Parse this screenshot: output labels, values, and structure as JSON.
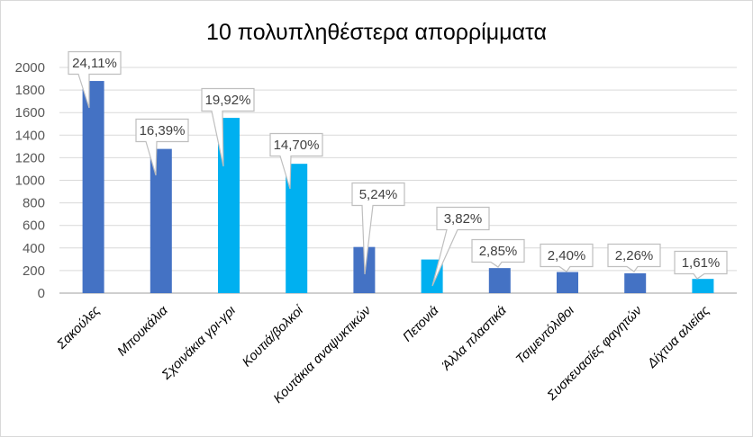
{
  "chart_data": {
    "type": "bar",
    "title": "10 πολυπληθέστερα απορρίμματα",
    "xlabel": "",
    "ylabel": "",
    "ylim": [
      0,
      2000
    ],
    "yticks": [
      0,
      200,
      400,
      600,
      800,
      1000,
      1200,
      1400,
      1600,
      1800,
      2000
    ],
    "grid": true,
    "categories": [
      "Σακούλες",
      "Μπουκάλια",
      "Σχοινάκια γρι-γρι",
      "Κουτιά/βολκοί",
      "Κουτάκια αναψυκτικών",
      "Πετονιά",
      "Άλλα πλαστικά",
      "Τσιμεντόλιθοι",
      "Συσκευασίες φαγητών",
      "Δίχτυα αλιείας"
    ],
    "values": [
      1880,
      1278,
      1553,
      1146,
      409,
      298,
      222,
      187,
      176,
      126
    ],
    "data_labels": [
      "24,11%",
      "16,39%",
      "19,92%",
      "14,70%",
      "5,24%",
      "3,82%",
      "2,85%",
      "2,40%",
      "2,26%",
      "1,61%"
    ],
    "bar_colors": [
      "#4472C4",
      "#4472C4",
      "#00B0F0",
      "#00B0F0",
      "#4472C4",
      "#00B0F0",
      "#4472C4",
      "#4472C4",
      "#4472C4",
      "#00B0F0"
    ]
  }
}
